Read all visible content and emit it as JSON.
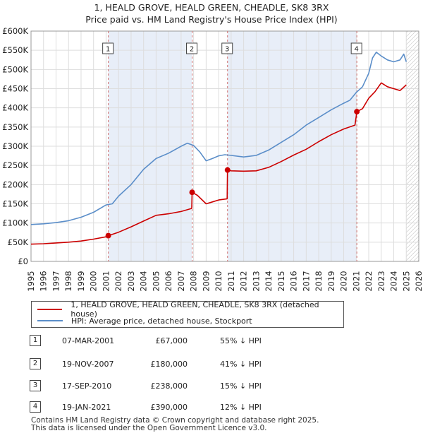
{
  "title": {
    "line1": "1, HEALD GROVE, HEALD GREEN, CHEADLE, SK8 3RX",
    "line2": "Price paid vs. HM Land Registry's House Price Index (HPI)"
  },
  "legend": {
    "red_label": "1, HEALD GROVE, HEALD GREEN, CHEADLE, SK8 3RX (detached house)",
    "blue_label": "HPI: Average price, detached house, Stockport"
  },
  "colors": {
    "red": "#cc0000",
    "blue": "#5b8ec9",
    "shade": "#e8eef8",
    "grid": "#dddddd",
    "vline": "#d07070"
  },
  "sales": [
    {
      "num": "1",
      "date": "07-MAR-2001",
      "price": "£67,000",
      "rel": "55% ↓ HPI"
    },
    {
      "num": "2",
      "date": "19-NOV-2007",
      "price": "£180,000",
      "rel": "41% ↓ HPI"
    },
    {
      "num": "3",
      "date": "17-SEP-2010",
      "price": "£238,000",
      "rel": "15% ↓ HPI"
    },
    {
      "num": "4",
      "date": "19-JAN-2021",
      "price": "£390,000",
      "rel": "12% ↓ HPI"
    }
  ],
  "footer": {
    "line1": "Contains HM Land Registry data © Crown copyright and database right 2025.",
    "line2": "This data is licensed under the Open Government Licence v3.0."
  },
  "chart_data": {
    "type": "line",
    "title": "1, HEALD GROVE, HEALD GREEN, CHEADLE, SK8 3RX",
    "subtitle": "Price paid vs. HM Land Registry's House Price Index (HPI)",
    "xlim": [
      1995,
      2026
    ],
    "ylim": [
      0,
      600000
    ],
    "y_ticks": [
      0,
      50000,
      100000,
      150000,
      200000,
      250000,
      300000,
      350000,
      400000,
      450000,
      500000,
      550000,
      600000
    ],
    "y_tick_labels": [
      "£0",
      "£50K",
      "£100K",
      "£150K",
      "£200K",
      "£250K",
      "£300K",
      "£350K",
      "£400K",
      "£450K",
      "£500K",
      "£550K",
      "£600K"
    ],
    "x_ticks": [
      1995,
      1996,
      1997,
      1998,
      1999,
      2000,
      2001,
      2002,
      2003,
      2004,
      2005,
      2006,
      2007,
      2008,
      2009,
      2010,
      2011,
      2012,
      2013,
      2014,
      2015,
      2016,
      2017,
      2018,
      2019,
      2020,
      2021,
      2022,
      2023,
      2024,
      2025,
      2026
    ],
    "shaded_ranges": [
      [
        2001.18,
        2007.88
      ],
      [
        2010.71,
        2021.05
      ]
    ],
    "hatch_from": 2025.0,
    "sale_markers": [
      {
        "label": "1",
        "x": 2001.18,
        "y": 67000
      },
      {
        "label": "2",
        "x": 2007.88,
        "y": 180000
      },
      {
        "label": "3",
        "x": 2010.71,
        "y": 238000
      },
      {
        "label": "4",
        "x": 2021.05,
        "y": 390000
      }
    ],
    "series": [
      {
        "name": "1, HEALD GROVE, HEALD GREEN, CHEADLE, SK8 3RX (detached house)",
        "color": "#cc0000",
        "x": [
          1995.0,
          1996.0,
          1997.0,
          1998.0,
          1999.0,
          2000.0,
          2001.0,
          2001.18,
          2002.0,
          2003.0,
          2004.0,
          2005.0,
          2006.0,
          2007.0,
          2007.85,
          2007.88,
          2008.3,
          2009.0,
          2009.5,
          2010.0,
          2010.68,
          2010.71,
          2011.0,
          2012.0,
          2013.0,
          2014.0,
          2015.0,
          2016.0,
          2017.0,
          2018.0,
          2019.0,
          2020.0,
          2020.9,
          2021.05,
          2021.5,
          2022.0,
          2022.5,
          2023.0,
          2023.5,
          2024.0,
          2024.5,
          2025.0
        ],
        "values": [
          45000,
          46000,
          48000,
          50000,
          53000,
          58000,
          64000,
          67000,
          76000,
          90000,
          105000,
          120000,
          124000,
          130000,
          138000,
          180000,
          172000,
          150000,
          155000,
          160000,
          163000,
          238000,
          236000,
          235000,
          236000,
          245000,
          260000,
          277000,
          292000,
          312000,
          330000,
          345000,
          355000,
          390000,
          398000,
          425000,
          442000,
          465000,
          455000,
          450000,
          445000,
          460000
        ]
      },
      {
        "name": "HPI: Average price, detached house, Stockport",
        "color": "#5b8ec9",
        "x": [
          1995.0,
          1996.0,
          1997.0,
          1998.0,
          1999.0,
          2000.0,
          2001.0,
          2001.5,
          2002.0,
          2003.0,
          2004.0,
          2005.0,
          2006.0,
          2007.0,
          2007.5,
          2008.0,
          2008.5,
          2009.0,
          2009.5,
          2010.0,
          2010.5,
          2011.0,
          2012.0,
          2013.0,
          2014.0,
          2015.0,
          2016.0,
          2017.0,
          2018.0,
          2019.0,
          2020.0,
          2020.5,
          2021.0,
          2021.5,
          2022.0,
          2022.3,
          2022.6,
          2023.0,
          2023.5,
          2024.0,
          2024.5,
          2024.8,
          2025.0
        ],
        "values": [
          96000,
          98000,
          101000,
          106000,
          115000,
          128000,
          147000,
          150000,
          170000,
          200000,
          240000,
          268000,
          282000,
          300000,
          308000,
          302000,
          285000,
          262000,
          268000,
          275000,
          278000,
          276000,
          272000,
          276000,
          290000,
          310000,
          330000,
          355000,
          375000,
          395000,
          412000,
          420000,
          440000,
          455000,
          490000,
          530000,
          545000,
          535000,
          525000,
          520000,
          525000,
          540000,
          520000
        ]
      }
    ]
  }
}
